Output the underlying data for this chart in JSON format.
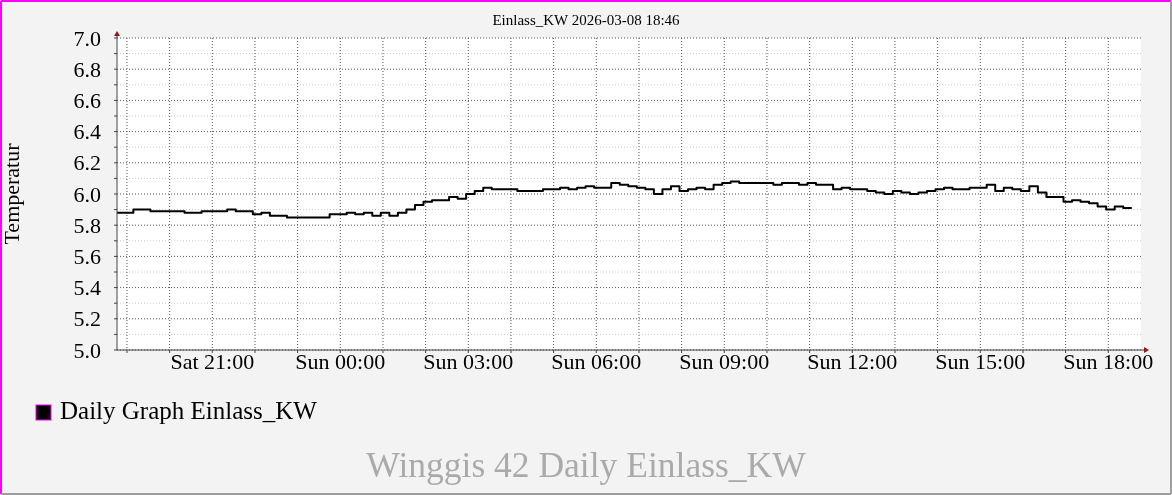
{
  "chart_data": {
    "type": "step",
    "title": "Einlass_KW 2026-03-08 18:46",
    "ylabel": "Temperatur",
    "annotations": [
      "Winggis 42 Daily Einlass_KW"
    ],
    "x": [
      "2026-03-07T18:46",
      "2026-03-07T19:09",
      "2026-03-07T19:33",
      "2026-03-07T20:21",
      "2026-03-07T20:45",
      "2026-03-07T21:21",
      "2026-03-07T21:33",
      "2026-03-07T21:57",
      "2026-03-07T22:09",
      "2026-03-07T22:21",
      "2026-03-07T22:45",
      "2026-03-07T23:45",
      "2026-03-08T00:09",
      "2026-03-08T00:21",
      "2026-03-08T00:33",
      "2026-03-08T00:45",
      "2026-03-08T00:57",
      "2026-03-08T01:09",
      "2026-03-08T01:21",
      "2026-03-08T01:33",
      "2026-03-08T01:45",
      "2026-03-08T01:57",
      "2026-03-08T02:09",
      "2026-03-08T02:33",
      "2026-03-08T02:45",
      "2026-03-08T02:57",
      "2026-03-08T03:09",
      "2026-03-08T03:21",
      "2026-03-08T03:33",
      "2026-03-08T04:09",
      "2026-03-08T04:45",
      "2026-03-08T05:09",
      "2026-03-08T05:21",
      "2026-03-08T05:33",
      "2026-03-08T05:45",
      "2026-03-08T05:57",
      "2026-03-08T06:21",
      "2026-03-08T06:33",
      "2026-03-08T06:45",
      "2026-03-08T06:57",
      "2026-03-08T07:09",
      "2026-03-08T07:21",
      "2026-03-08T07:33",
      "2026-03-08T07:45",
      "2026-03-08T07:57",
      "2026-03-08T08:09",
      "2026-03-08T08:21",
      "2026-03-08T08:33",
      "2026-03-08T08:45",
      "2026-03-08T08:57",
      "2026-03-08T09:09",
      "2026-03-08T09:21",
      "2026-03-08T10:09",
      "2026-03-08T10:21",
      "2026-03-08T10:45",
      "2026-03-08T10:57",
      "2026-03-08T11:09",
      "2026-03-08T11:33",
      "2026-03-08T11:45",
      "2026-03-08T11:57",
      "2026-03-08T12:21",
      "2026-03-08T12:33",
      "2026-03-08T12:45",
      "2026-03-08T12:57",
      "2026-03-08T13:09",
      "2026-03-08T13:21",
      "2026-03-08T13:33",
      "2026-03-08T13:45",
      "2026-03-08T13:57",
      "2026-03-08T14:09",
      "2026-03-08T14:21",
      "2026-03-08T14:45",
      "2026-03-08T15:09",
      "2026-03-08T15:21",
      "2026-03-08T15:33",
      "2026-03-08T15:45",
      "2026-03-08T15:57",
      "2026-03-08T16:09",
      "2026-03-08T16:21",
      "2026-03-08T16:33",
      "2026-03-08T16:57",
      "2026-03-08T17:09",
      "2026-03-08T17:21",
      "2026-03-08T17:33",
      "2026-03-08T17:45",
      "2026-03-08T17:57",
      "2026-03-08T18:09",
      "2026-03-08T18:21",
      "2026-03-08T18:33"
    ],
    "series": [
      {
        "name": "Daily Graph Einlass_KW",
        "color": "#000000",
        "values": [
          5.88,
          5.9,
          5.89,
          5.88,
          5.89,
          5.9,
          5.89,
          5.87,
          5.88,
          5.86,
          5.85,
          5.87,
          5.88,
          5.87,
          5.88,
          5.86,
          5.88,
          5.86,
          5.88,
          5.9,
          5.93,
          5.95,
          5.96,
          5.98,
          5.97,
          6.0,
          6.02,
          6.04,
          6.03,
          6.02,
          6.03,
          6.04,
          6.03,
          6.04,
          6.05,
          6.04,
          6.07,
          6.06,
          6.05,
          6.04,
          6.03,
          6.0,
          6.03,
          6.05,
          6.02,
          6.03,
          6.04,
          6.03,
          6.06,
          6.07,
          6.08,
          6.07,
          6.06,
          6.07,
          6.06,
          6.07,
          6.06,
          6.03,
          6.04,
          6.03,
          6.02,
          6.01,
          6.0,
          6.02,
          6.01,
          6.0,
          6.01,
          6.02,
          6.03,
          6.04,
          6.03,
          6.04,
          6.06,
          6.02,
          6.04,
          6.03,
          6.02,
          6.05,
          6.01,
          5.98,
          5.95,
          5.96,
          5.95,
          5.94,
          5.92,
          5.9,
          5.92,
          5.91,
          5.91
        ]
      }
    ],
    "xlim": [
      "2026-03-07T18:46",
      "2026-03-08T18:46"
    ],
    "xticks": [
      {
        "value": "2026-03-07T19:00",
        "label": null
      },
      {
        "value": "2026-03-07T20:00",
        "label": null
      },
      {
        "value": "2026-03-07T21:00",
        "label": "Sat 21:00"
      },
      {
        "value": "2026-03-07T22:00",
        "label": null
      },
      {
        "value": "2026-03-07T23:00",
        "label": null
      },
      {
        "value": "2026-03-08T00:00",
        "label": "Sun 00:00"
      },
      {
        "value": "2026-03-08T01:00",
        "label": null
      },
      {
        "value": "2026-03-08T02:00",
        "label": null
      },
      {
        "value": "2026-03-08T03:00",
        "label": "Sun 03:00"
      },
      {
        "value": "2026-03-08T04:00",
        "label": null
      },
      {
        "value": "2026-03-08T05:00",
        "label": null
      },
      {
        "value": "2026-03-08T06:00",
        "label": "Sun 06:00"
      },
      {
        "value": "2026-03-08T07:00",
        "label": null
      },
      {
        "value": "2026-03-08T08:00",
        "label": null
      },
      {
        "value": "2026-03-08T09:00",
        "label": "Sun 09:00"
      },
      {
        "value": "2026-03-08T10:00",
        "label": null
      },
      {
        "value": "2026-03-08T11:00",
        "label": null
      },
      {
        "value": "2026-03-08T12:00",
        "label": "Sun 12:00"
      },
      {
        "value": "2026-03-08T13:00",
        "label": null
      },
      {
        "value": "2026-03-08T14:00",
        "label": null
      },
      {
        "value": "2026-03-08T15:00",
        "label": "Sun 15:00"
      },
      {
        "value": "2026-03-08T16:00",
        "label": null
      },
      {
        "value": "2026-03-08T17:00",
        "label": null
      },
      {
        "value": "2026-03-08T18:00",
        "label": "Sun 18:00"
      }
    ],
    "ylim": [
      5,
      7
    ],
    "yticks": [
      {
        "value": 5,
        "label": "5.0"
      },
      {
        "value": 5.1,
        "label": null
      },
      {
        "value": 5.2,
        "label": "5.2"
      },
      {
        "value": 5.3,
        "label": null
      },
      {
        "value": 5.4,
        "label": "5.4"
      },
      {
        "value": 5.5,
        "label": null
      },
      {
        "value": 5.6,
        "label": "5.6"
      },
      {
        "value": 5.7,
        "label": null
      },
      {
        "value": 5.8,
        "label": "5.8"
      },
      {
        "value": 5.9,
        "label": null
      },
      {
        "value": 6,
        "label": "6.0"
      },
      {
        "value": 6.1,
        "label": null
      },
      {
        "value": 6.2,
        "label": "6.2"
      },
      {
        "value": 6.3,
        "label": null
      },
      {
        "value": 6.4,
        "label": "6.4"
      },
      {
        "value": 6.5,
        "label": null
      },
      {
        "value": 6.6,
        "label": "6.6"
      },
      {
        "value": 6.7,
        "label": null
      },
      {
        "value": 6.8,
        "label": "6.8"
      },
      {
        "value": 6.9,
        "label": null
      },
      {
        "value": 7,
        "label": "7.0"
      }
    ],
    "grid": true,
    "legend": "bottom left"
  }
}
